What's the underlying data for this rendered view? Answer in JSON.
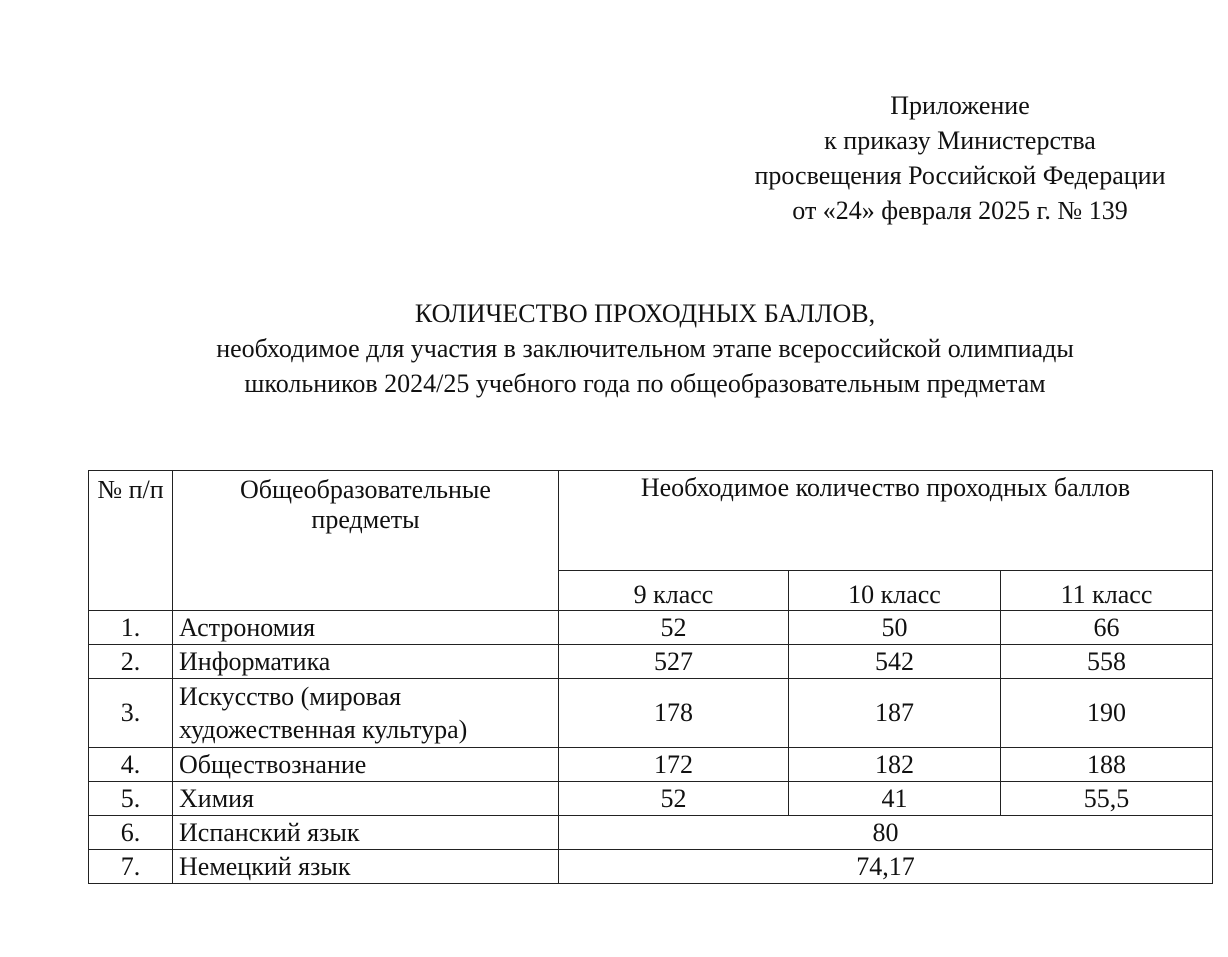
{
  "appendix": {
    "lines": [
      "Приложение",
      "к приказу Министерства",
      "просвещения Российской Федерации",
      "от «24» февраля  2025 г. №  139"
    ]
  },
  "title": {
    "heading": "КОЛИЧЕСТВО ПРОХОДНЫХ БАЛЛОВ,",
    "subtitle_lines": [
      "необходимое для участия в заключительном этапе всероссийской олимпиады",
      "школьников 2024/25 учебного года по общеобразовательным предметам"
    ]
  },
  "table": {
    "headers": {
      "num": "№ п/п",
      "subject": "Общеобразовательные предметы",
      "scores": "Необходимое количество проходных баллов",
      "grades": [
        "9 класс",
        "10 класс",
        "11 класс"
      ]
    },
    "rows": [
      {
        "num": "1.",
        "subject": "Астрономия",
        "values": [
          "52",
          "50",
          "66"
        ]
      },
      {
        "num": "2.",
        "subject": "Информатика",
        "values": [
          "527",
          "542",
          "558"
        ]
      },
      {
        "num": "3.",
        "subject": "Искусство (мировая художественная культура)",
        "values": [
          "178",
          "187",
          "190"
        ]
      },
      {
        "num": "4.",
        "subject": "Обществознание",
        "values": [
          "172",
          "182",
          "188"
        ]
      },
      {
        "num": "5.",
        "subject": "Химия",
        "values": [
          "52",
          "41",
          "55,5"
        ]
      },
      {
        "num": "6.",
        "subject": "Испанский язык",
        "merged": "80"
      },
      {
        "num": "7.",
        "subject": "Немецкий язык",
        "merged": "74,17"
      }
    ]
  }
}
